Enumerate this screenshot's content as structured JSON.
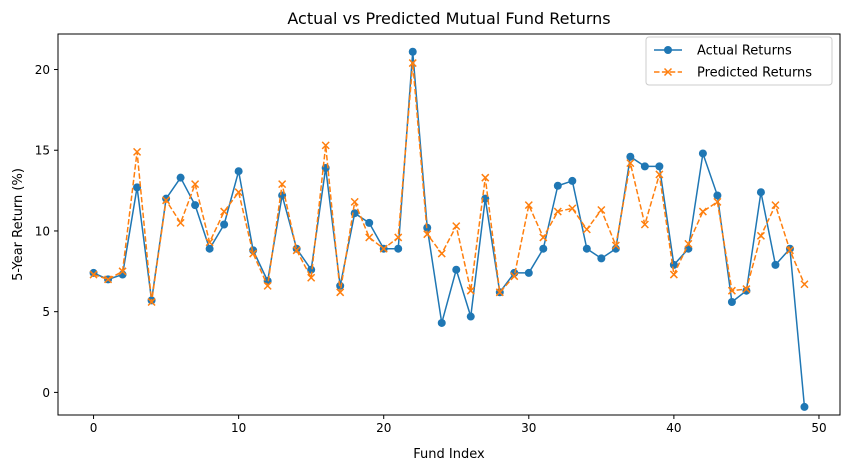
{
  "chart_data": {
    "type": "line",
    "title": "Actual vs Predicted Mutual Fund Returns",
    "xlabel": "Fund Index",
    "ylabel": "5-Year Return (%)",
    "xlim": [
      -2.45,
      51.45
    ],
    "ylim": [
      -1.4,
      22.2
    ],
    "xticks": [
      0,
      10,
      20,
      30,
      40,
      50
    ],
    "yticks": [
      0,
      5,
      10,
      15,
      20
    ],
    "grid": false,
    "legend_position": "top-right",
    "x": [
      0,
      1,
      2,
      3,
      4,
      5,
      6,
      7,
      8,
      9,
      10,
      11,
      12,
      13,
      14,
      15,
      16,
      17,
      18,
      19,
      20,
      21,
      22,
      23,
      24,
      25,
      26,
      27,
      28,
      29,
      30,
      31,
      32,
      33,
      34,
      35,
      36,
      37,
      38,
      39,
      40,
      41,
      42,
      43,
      44,
      45,
      46,
      47,
      48,
      49
    ],
    "series": [
      {
        "name": "Actual Returns",
        "color": "#1f77b4",
        "line_style": "solid",
        "marker": "circle",
        "values": [
          7.4,
          7.0,
          7.3,
          12.7,
          5.7,
          12.0,
          13.3,
          11.6,
          8.9,
          10.4,
          13.7,
          8.8,
          6.9,
          12.2,
          8.9,
          7.6,
          13.9,
          6.6,
          11.1,
          10.5,
          8.9,
          8.9,
          21.1,
          10.2,
          4.3,
          7.6,
          4.7,
          12.0,
          6.2,
          7.4,
          7.4,
          8.9,
          12.8,
          13.1,
          8.9,
          8.3,
          8.9,
          14.6,
          14.0,
          14.0,
          7.9,
          8.9,
          14.8,
          12.2,
          5.6,
          6.3,
          12.4,
          7.9,
          8.9,
          -0.9
        ]
      },
      {
        "name": "Predicted Returns",
        "color": "#ff7f0e",
        "line_style": "dashed",
        "marker": "x",
        "values": [
          7.3,
          7.0,
          7.5,
          14.9,
          5.6,
          11.9,
          10.5,
          12.9,
          9.3,
          11.2,
          12.4,
          8.6,
          6.6,
          12.9,
          8.8,
          7.1,
          15.3,
          6.2,
          11.8,
          9.6,
          8.9,
          9.6,
          20.4,
          9.8,
          8.6,
          10.3,
          6.3,
          13.3,
          6.2,
          7.2,
          11.6,
          9.6,
          11.2,
          11.4,
          10.1,
          11.3,
          9.1,
          14.2,
          10.4,
          13.5,
          7.3,
          9.2,
          11.2,
          11.8,
          6.3,
          6.4,
          9.7,
          11.6,
          8.8,
          6.7
        ]
      }
    ]
  }
}
